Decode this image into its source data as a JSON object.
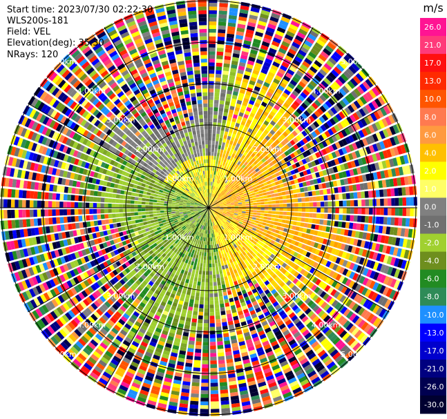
{
  "header": {
    "start_time": "Start time: 2023/07/30 02:22:30",
    "instrument": "WLS200s-181",
    "field": "Field: VEL",
    "elevation": "Elevation(deg): 35.30",
    "nrays": "NRays: 120"
  },
  "chart_data": {
    "type": "heatmap",
    "projection": "polar-ppi",
    "rings_km": [
      1.0,
      2.0,
      3.0,
      4.0,
      5.0
    ],
    "ring_labels": [
      "1.00km",
      "2.00km",
      "3.00km",
      "4.00km",
      "5.00km"
    ],
    "nrays": 120,
    "colorbar": {
      "unit": "m/s",
      "ticks": [
        "26.0",
        "21.0",
        "17.0",
        "13.0",
        "10.0",
        "8.0",
        "6.0",
        "4.0",
        "2.0",
        "1.0",
        "0.0",
        "-1.0",
        "-2.0",
        "-4.0",
        "-6.0",
        "-8.0",
        "-10.0",
        "-13.0",
        "-17.0",
        "-21.0",
        "-26.0",
        "-30.0"
      ],
      "colors": [
        "#ff1493",
        "#ff3a7a",
        "#ff1010",
        "#ff2a00",
        "#ff5500",
        "#ff7a50",
        "#ff9a40",
        "#ffc000",
        "#ffff00",
        "#ffff66",
        "#808080",
        "#707070",
        "#a0d030",
        "#6e8e1e",
        "#228b22",
        "#2e8b57",
        "#1e90ff",
        "#0000ff",
        "#0000cd",
        "#000080",
        "#000050",
        "#000030"
      ]
    }
  }
}
